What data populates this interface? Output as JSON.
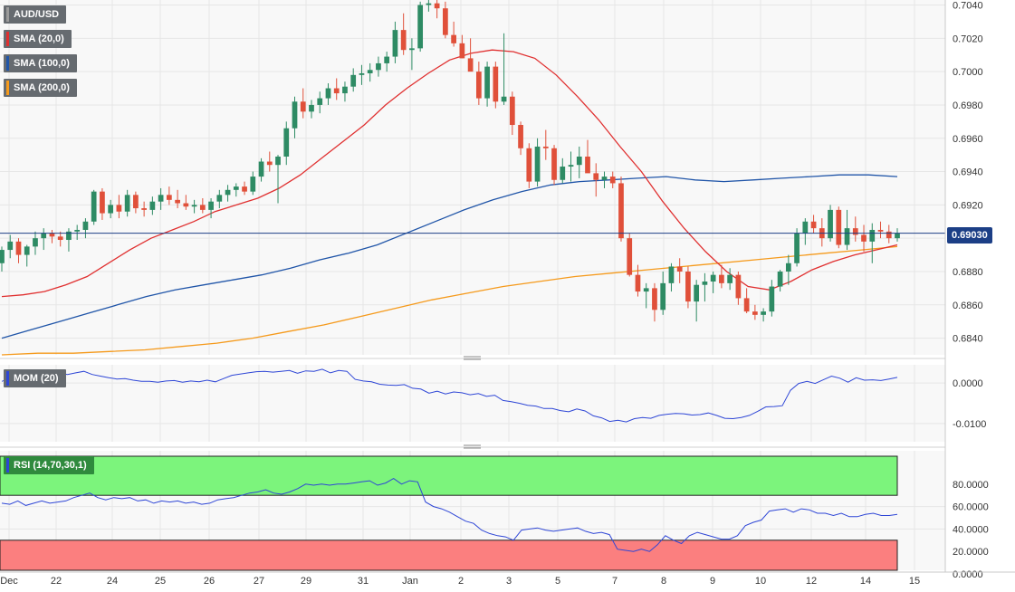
{
  "chart_data": [
    {
      "type": "candlestick",
      "title": "AUD/USD",
      "overlays": [
        {
          "name": "SMA (20,0)",
          "color": "#e03030"
        },
        {
          "name": "SMA (100,0)",
          "color": "#2055a8"
        },
        {
          "name": "SMA (200,0)",
          "color": "#f59a1c"
        }
      ],
      "current_price": "0.69030",
      "ylim": [
        0.683,
        0.7043
      ],
      "y_ticks": [
        "0.6840",
        "0.6860",
        "0.6880",
        "0.6900",
        "0.6920",
        "0.6940",
        "0.6960",
        "0.6980",
        "0.7000",
        "0.7020",
        "0.7040"
      ],
      "x_ticks": [
        "Dec",
        "22",
        "24",
        "25",
        "26",
        "27",
        "29",
        "31",
        "Jan",
        "2",
        "3",
        "5",
        "7",
        "8",
        "9",
        "10",
        "12",
        "14",
        "15"
      ],
      "up_color": "#2e8b64",
      "down_color": "#e0503a",
      "candles": [
        [
          0.6885,
          0.6895,
          0.688,
          0.6893
        ],
        [
          0.6893,
          0.6902,
          0.6888,
          0.6898
        ],
        [
          0.6898,
          0.69,
          0.6885,
          0.689
        ],
        [
          0.689,
          0.6896,
          0.6883,
          0.6895
        ],
        [
          0.6895,
          0.6904,
          0.689,
          0.69
        ],
        [
          0.69,
          0.6906,
          0.6893,
          0.6903
        ],
        [
          0.6903,
          0.6905,
          0.6897,
          0.6901
        ],
        [
          0.6901,
          0.6904,
          0.6895,
          0.6899
        ],
        [
          0.6899,
          0.6906,
          0.6892,
          0.6904
        ],
        [
          0.6904,
          0.6908,
          0.6899,
          0.6905
        ],
        [
          0.6905,
          0.6912,
          0.69,
          0.691
        ],
        [
          0.691,
          0.6929,
          0.6908,
          0.6928
        ],
        [
          0.6928,
          0.693,
          0.6911,
          0.6915
        ],
        [
          0.6915,
          0.6923,
          0.6912,
          0.692
        ],
        [
          0.692,
          0.6926,
          0.6912,
          0.6916
        ],
        [
          0.6916,
          0.6929,
          0.6913,
          0.6926
        ],
        [
          0.6926,
          0.6928,
          0.6915,
          0.6918
        ],
        [
          0.6918,
          0.6922,
          0.6913,
          0.6917
        ],
        [
          0.6917,
          0.6925,
          0.6914,
          0.6922
        ],
        [
          0.6922,
          0.693,
          0.6917,
          0.6926
        ],
        [
          0.6926,
          0.6931,
          0.692,
          0.6923
        ],
        [
          0.6923,
          0.6929,
          0.6918,
          0.6921
        ],
        [
          0.6921,
          0.6926,
          0.6917,
          0.6919
        ],
        [
          0.6919,
          0.6923,
          0.6915,
          0.692
        ],
        [
          0.692,
          0.6924,
          0.6915,
          0.6917
        ],
        [
          0.6917,
          0.6924,
          0.6912,
          0.6922
        ],
        [
          0.6922,
          0.6929,
          0.6918,
          0.6926
        ],
        [
          0.6926,
          0.6932,
          0.6922,
          0.6929
        ],
        [
          0.6929,
          0.6933,
          0.6925,
          0.6931
        ],
        [
          0.6931,
          0.6934,
          0.6926,
          0.6928
        ],
        [
          0.6928,
          0.694,
          0.6926,
          0.6937
        ],
        [
          0.6937,
          0.6948,
          0.6934,
          0.6946
        ],
        [
          0.6946,
          0.6952,
          0.694,
          0.6944
        ],
        [
          0.6944,
          0.695,
          0.6921,
          0.6949
        ],
        [
          0.6949,
          0.697,
          0.6944,
          0.6966
        ],
        [
          0.6966,
          0.6985,
          0.696,
          0.6982
        ],
        [
          0.6982,
          0.699,
          0.6972,
          0.6976
        ],
        [
          0.6976,
          0.6983,
          0.6972,
          0.698
        ],
        [
          0.698,
          0.6988,
          0.6975,
          0.6984
        ],
        [
          0.6984,
          0.6993,
          0.698,
          0.699
        ],
        [
          0.699,
          0.6996,
          0.6983,
          0.6987
        ],
        [
          0.6987,
          0.6994,
          0.6982,
          0.6991
        ],
        [
          0.6991,
          0.7002,
          0.6988,
          0.6998
        ],
        [
          0.6998,
          0.7004,
          0.6992,
          0.6999
        ],
        [
          0.6999,
          0.7005,
          0.6994,
          0.7001
        ],
        [
          0.7001,
          0.7009,
          0.6997,
          0.7005
        ],
        [
          0.7005,
          0.7012,
          0.7,
          0.7009
        ],
        [
          0.7009,
          0.703,
          0.7005,
          0.7025
        ],
        [
          0.7025,
          0.7035,
          0.701,
          0.7013
        ],
        [
          0.7013,
          0.702,
          0.7001,
          0.7014
        ],
        [
          0.7014,
          0.7042,
          0.7012,
          0.704
        ],
        [
          0.704,
          0.7043,
          0.7036,
          0.7041
        ],
        [
          0.7041,
          0.7043,
          0.7032,
          0.7038
        ],
        [
          0.7038,
          0.7042,
          0.702,
          0.7022
        ],
        [
          0.7022,
          0.703,
          0.7015,
          0.7017
        ],
        [
          0.7017,
          0.7022,
          0.7008,
          0.7008
        ],
        [
          0.7008,
          0.702,
          0.7002,
          0.7
        ],
        [
          0.7,
          0.7006,
          0.698,
          0.6984
        ],
        [
          0.6984,
          0.7006,
          0.6979,
          0.7003
        ],
        [
          0.7003,
          0.7006,
          0.6978,
          0.6982
        ],
        [
          0.6982,
          0.7023,
          0.698,
          0.6985
        ],
        [
          0.6985,
          0.6988,
          0.6962,
          0.6968
        ],
        [
          0.6968,
          0.697,
          0.695,
          0.6954
        ],
        [
          0.6954,
          0.6957,
          0.693,
          0.6934
        ],
        [
          0.6934,
          0.696,
          0.6931,
          0.6955
        ],
        [
          0.6955,
          0.6965,
          0.6947,
          0.6954
        ],
        [
          0.6954,
          0.6956,
          0.6932,
          0.6935
        ],
        [
          0.6935,
          0.6948,
          0.6933,
          0.6943
        ],
        [
          0.6943,
          0.6952,
          0.6934,
          0.6944
        ],
        [
          0.6944,
          0.6955,
          0.6936,
          0.6949
        ],
        [
          0.6949,
          0.6959,
          0.694,
          0.6939
        ],
        [
          0.6939,
          0.6945,
          0.6925,
          0.6935
        ],
        [
          0.6935,
          0.694,
          0.693,
          0.6937
        ],
        [
          0.6937,
          0.694,
          0.693,
          0.6933
        ],
        [
          0.6933,
          0.6937,
          0.6898,
          0.69
        ],
        [
          0.69,
          0.6903,
          0.6877,
          0.6878
        ],
        [
          0.6878,
          0.6884,
          0.6865,
          0.6868
        ],
        [
          0.6868,
          0.6873,
          0.6858,
          0.687
        ],
        [
          0.687,
          0.6873,
          0.685,
          0.6857
        ],
        [
          0.6857,
          0.688,
          0.6854,
          0.6873
        ],
        [
          0.6873,
          0.6885,
          0.6868,
          0.6883
        ],
        [
          0.6883,
          0.6888,
          0.6873,
          0.688
        ],
        [
          0.688,
          0.6883,
          0.6858,
          0.6862
        ],
        [
          0.6862,
          0.6875,
          0.685,
          0.6872
        ],
        [
          0.6872,
          0.6879,
          0.6862,
          0.6874
        ],
        [
          0.6874,
          0.688,
          0.6867,
          0.6878
        ],
        [
          0.6878,
          0.6884,
          0.687,
          0.6873
        ],
        [
          0.6873,
          0.6882,
          0.6869,
          0.6878
        ],
        [
          0.6878,
          0.688,
          0.686,
          0.6864
        ],
        [
          0.6864,
          0.687,
          0.6855,
          0.6856
        ],
        [
          0.6856,
          0.686,
          0.6851,
          0.6854
        ],
        [
          0.6854,
          0.6858,
          0.685,
          0.6856
        ],
        [
          0.6856,
          0.6875,
          0.6853,
          0.6871
        ],
        [
          0.6871,
          0.6881,
          0.6868,
          0.688
        ],
        [
          0.688,
          0.689,
          0.6872,
          0.6885
        ],
        [
          0.6885,
          0.6906,
          0.6883,
          0.6903
        ],
        [
          0.6903,
          0.6912,
          0.6896,
          0.691
        ],
        [
          0.691,
          0.6914,
          0.6903,
          0.6906
        ],
        [
          0.6906,
          0.6912,
          0.6895,
          0.69
        ],
        [
          0.69,
          0.692,
          0.6898,
          0.6917
        ],
        [
          0.6917,
          0.6919,
          0.6894,
          0.6896
        ],
        [
          0.6896,
          0.6917,
          0.6893,
          0.6906
        ],
        [
          0.6906,
          0.6913,
          0.6898,
          0.6902
        ],
        [
          0.6902,
          0.6908,
          0.6892,
          0.6898
        ],
        [
          0.6898,
          0.6909,
          0.6885,
          0.6905
        ],
        [
          0.6905,
          0.691,
          0.69,
          0.6904
        ],
        [
          0.6904,
          0.6908,
          0.6897,
          0.69
        ],
        [
          0.69,
          0.6906,
          0.6898,
          0.6903
        ]
      ],
      "sma20": [
        0.6865,
        0.6866,
        0.6868,
        0.6872,
        0.6877,
        0.6885,
        0.6893,
        0.69,
        0.6905,
        0.691,
        0.6916,
        0.692,
        0.6924,
        0.693,
        0.6938,
        0.6948,
        0.6958,
        0.6968,
        0.698,
        0.699,
        0.6999,
        0.7007,
        0.7011,
        0.7013,
        0.7012,
        0.7008,
        0.6998,
        0.6985,
        0.6971,
        0.6955,
        0.694,
        0.6922,
        0.6906,
        0.6892,
        0.688,
        0.6871,
        0.6869,
        0.6874,
        0.6881,
        0.6886,
        0.689,
        0.6893,
        0.6896
      ],
      "sma100": [
        0.684,
        0.6845,
        0.685,
        0.6855,
        0.686,
        0.6865,
        0.6869,
        0.6872,
        0.6875,
        0.6878,
        0.6882,
        0.6887,
        0.6891,
        0.6896,
        0.6903,
        0.691,
        0.6917,
        0.6923,
        0.6928,
        0.6932,
        0.6934,
        0.6935,
        0.6936,
        0.6937,
        0.6935,
        0.6934,
        0.6935,
        0.6936,
        0.6937,
        0.6938,
        0.6938,
        0.6937
      ],
      "sma200": [
        0.683,
        0.6831,
        0.6831,
        0.6832,
        0.6833,
        0.6835,
        0.6837,
        0.684,
        0.6844,
        0.6848,
        0.6853,
        0.6858,
        0.6863,
        0.6867,
        0.6871,
        0.6874,
        0.6877,
        0.6879,
        0.6881,
        0.6883,
        0.6885,
        0.6887,
        0.6889,
        0.6891,
        0.6893,
        0.6895
      ],
      "x_range": [
        0,
        109
      ]
    },
    {
      "type": "line",
      "title": "MOM (20)",
      "ylim": [
        -0.0145,
        0.0045
      ],
      "y_ticks": [
        "0.0000",
        "-0.0100"
      ],
      "series": [
        {
          "color": "#2e46d6",
          "values": [
            0.0004,
            0.0012,
            0.0018,
            0.0022,
            0.0026,
            0.003,
            0.0027,
            0.0024,
            0.0021,
            0.0025,
            0.0029,
            0.0021,
            0.0017,
            0.0013,
            0.001,
            0.0011,
            0.0007,
            0.0004,
            0.0004,
            0.0002,
            0.0005,
            0.0006,
            0.0002,
            0.0005,
            0.0003,
            0.0007,
            0.0003,
            0.0011,
            0.0019,
            0.0022,
            0.0025,
            0.0028,
            0.0029,
            0.0027,
            0.0029,
            0.0031,
            0.0024,
            0.003,
            0.0029,
            0.0034,
            0.0025,
            0.0031,
            0.0029,
            0.0009,
            0.0005,
            0.0003,
            -0.0003,
            -0.0005,
            -0.0006,
            -0.0004,
            -0.0013,
            -0.0015,
            -0.0025,
            -0.002,
            -0.0027,
            -0.0022,
            -0.0024,
            -0.0029,
            -0.0026,
            -0.0033,
            -0.003,
            -0.0043,
            -0.0046,
            -0.005,
            -0.0055,
            -0.0057,
            -0.0063,
            -0.0063,
            -0.0068,
            -0.0071,
            -0.0064,
            -0.0069,
            -0.0081,
            -0.0086,
            -0.0095,
            -0.0092,
            -0.0096,
            -0.0088,
            -0.0085,
            -0.0087,
            -0.008,
            -0.0077,
            -0.0075,
            -0.0076,
            -0.0079,
            -0.0078,
            -0.0074,
            -0.008,
            -0.0087,
            -0.0088,
            -0.0085,
            -0.008,
            -0.007,
            -0.0059,
            -0.0058,
            -0.0056,
            -0.0018,
            -0.0001,
            0.0004,
            -0.0001,
            0.0008,
            0.0017,
            0.0012,
            0.0002,
            0.0013,
            0.0007,
            0.0008,
            0.0006,
            0.001,
            0.0014
          ]
        }
      ]
    },
    {
      "type": "line",
      "title": "RSI (14,70,30,1)",
      "ylim": [
        0,
        100
      ],
      "y_ticks": [
        "80.0000",
        "60.0000",
        "40.0000",
        "20.0000",
        "0.0000"
      ],
      "overbought": 70,
      "oversold": 30,
      "series": [
        {
          "color": "#2e46d6",
          "values": [
            63,
            62,
            65,
            61,
            63,
            65,
            63,
            64,
            65,
            68,
            70,
            72,
            68,
            66,
            68,
            67,
            68,
            65,
            66,
            63,
            65,
            64,
            65,
            63,
            64,
            62,
            63,
            66,
            67,
            68,
            70,
            72,
            73,
            75,
            72,
            71,
            73,
            76,
            80,
            79,
            80,
            79,
            80,
            80,
            81,
            82,
            83,
            79,
            81,
            85,
            80,
            83,
            82,
            64,
            60,
            58,
            55,
            51,
            47,
            45,
            39,
            36,
            34,
            33,
            30,
            39,
            40,
            41,
            39,
            38,
            39,
            40,
            41,
            38,
            36,
            37,
            35,
            22,
            21,
            20,
            22,
            20,
            26,
            34,
            30,
            27,
            34,
            37,
            35,
            33,
            31,
            31,
            34,
            43,
            46,
            48,
            56,
            57,
            58,
            55,
            58,
            57,
            54,
            54,
            52,
            54,
            51,
            51,
            53,
            54,
            52,
            52,
            53
          ]
        }
      ]
    }
  ]
}
